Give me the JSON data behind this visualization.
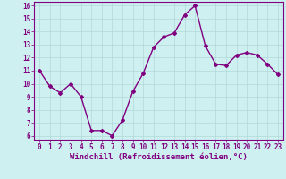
{
  "x": [
    0,
    1,
    2,
    3,
    4,
    5,
    6,
    7,
    8,
    9,
    10,
    11,
    12,
    13,
    14,
    15,
    16,
    17,
    18,
    19,
    20,
    21,
    22,
    23
  ],
  "y": [
    11.0,
    9.8,
    9.3,
    10.0,
    9.0,
    6.4,
    6.4,
    6.0,
    7.2,
    9.4,
    10.8,
    12.8,
    13.6,
    13.9,
    15.3,
    16.0,
    12.9,
    11.5,
    11.4,
    12.2,
    12.4,
    12.2,
    11.5,
    10.7
  ],
  "line_color": "#800080",
  "marker": "D",
  "marker_size": 2,
  "xlabel": "Windchill (Refroidissement éolien,°C)",
  "xlabel_fontsize": 6.5,
  "bg_color": "#cff0f0",
  "grid_color": "#b0d8d8",
  "ylim_min": 5.7,
  "ylim_max": 16.3,
  "xlim_min": -0.5,
  "xlim_max": 23.5,
  "yticks": [
    6,
    7,
    8,
    9,
    10,
    11,
    12,
    13,
    14,
    15,
    16
  ],
  "xticks": [
    0,
    1,
    2,
    3,
    4,
    5,
    6,
    7,
    8,
    9,
    10,
    11,
    12,
    13,
    14,
    15,
    16,
    17,
    18,
    19,
    20,
    21,
    22,
    23
  ],
  "tick_fontsize": 5.5,
  "spine_color": "#800080",
  "linewidth": 1.0
}
